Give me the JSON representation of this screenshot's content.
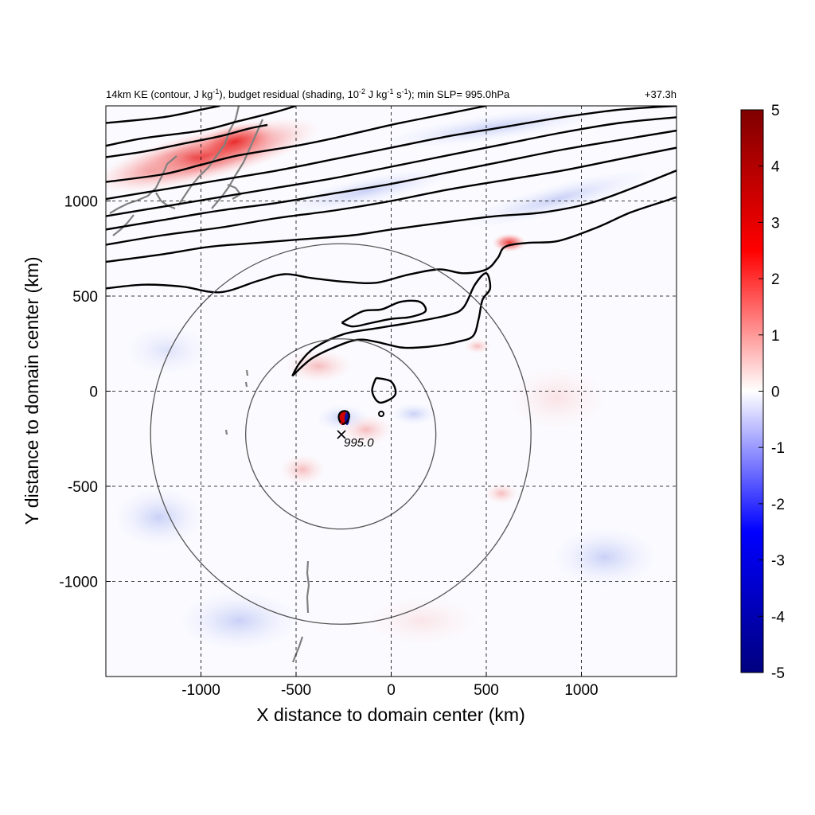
{
  "chart_data": {
    "type": "heatmap",
    "title_main": "14km KE (contour, J kg",
    "title_sup1": "-1",
    "title_mid": "), budget residual (shading, 10",
    "title_sup2": "-2",
    "title_mid2": " J kg",
    "title_sup3": "-1",
    "title_mid3": " s",
    "title_sup4": "-1",
    "title_end": "); min SLP= 995.0hPa",
    "time_label": "+37.3h",
    "xlabel": "X distance to domain center (km)",
    "ylabel": "Y distance to domain center (km)",
    "xlim": [
      -1500,
      1500
    ],
    "ylim": [
      -1500,
      1500
    ],
    "xticks": [
      -1000,
      -500,
      0,
      500,
      1000
    ],
    "yticks": [
      -1000,
      -500,
      0,
      500,
      1000
    ],
    "xtick_labels": [
      "-1000",
      "-500",
      "0",
      "500",
      "1000"
    ],
    "ytick_labels": [
      "-1000",
      "-500",
      "0",
      "500",
      "1000"
    ],
    "grid": true,
    "colorbar": {
      "min": -5,
      "max": 5,
      "ticks": [
        5,
        4,
        3,
        2,
        1,
        0,
        -1,
        -2,
        -3,
        -4,
        -5
      ],
      "tick_labels": [
        "5",
        "4",
        "3",
        "2",
        "1",
        "0",
        "-1",
        "-2",
        "-3",
        "-4",
        "-5"
      ],
      "colors": [
        "#00007f",
        "#0000ff",
        "#ffffff",
        "#ff0000",
        "#7f0000"
      ],
      "placement": "right"
    },
    "storm_center": {
      "x": -265,
      "y": -225,
      "label": "995.0"
    },
    "range_circles_km": [
      500,
      1000
    ],
    "contours": [
      [
        [
          -1500,
          1410
        ],
        [
          -1200,
          1440
        ],
        [
          -1000,
          1480
        ],
        [
          -900,
          1500
        ]
      ],
      [
        [
          -1500,
          1290
        ],
        [
          -1300,
          1330
        ],
        [
          -1000,
          1370
        ],
        [
          -800,
          1420
        ],
        [
          -600,
          1470
        ],
        [
          -500,
          1500
        ]
      ],
      [
        [
          -1500,
          1230
        ],
        [
          -1300,
          1260
        ],
        [
          -1100,
          1300
        ],
        [
          -900,
          1340
        ],
        [
          -750,
          1380
        ],
        [
          -650,
          1400
        ]
      ],
      [
        [
          -1500,
          1100
        ],
        [
          -1200,
          1140
        ],
        [
          -1000,
          1190
        ],
        [
          -800,
          1240
        ],
        [
          -500,
          1290
        ],
        [
          -300,
          1330
        ],
        [
          0,
          1400
        ],
        [
          300,
          1460
        ],
        [
          500,
          1500
        ]
      ],
      [
        [
          -1500,
          1010
        ],
        [
          -1200,
          1060
        ],
        [
          -900,
          1110
        ],
        [
          -600,
          1160
        ],
        [
          -300,
          1220
        ],
        [
          0,
          1280
        ],
        [
          300,
          1340
        ],
        [
          600,
          1390
        ],
        [
          900,
          1440
        ],
        [
          1200,
          1480
        ],
        [
          1500,
          1500
        ]
      ],
      [
        [
          -1500,
          920
        ],
        [
          -1200,
          970
        ],
        [
          -900,
          1020
        ],
        [
          -600,
          1070
        ],
        [
          -300,
          1120
        ],
        [
          0,
          1180
        ],
        [
          300,
          1240
        ],
        [
          600,
          1300
        ],
        [
          900,
          1360
        ],
        [
          1200,
          1410
        ],
        [
          1500,
          1440
        ]
      ],
      [
        [
          -1500,
          850
        ],
        [
          -1200,
          900
        ],
        [
          -900,
          950
        ],
        [
          -600,
          990
        ],
        [
          -300,
          1040
        ],
        [
          0,
          1090
        ],
        [
          300,
          1150
        ],
        [
          600,
          1210
        ],
        [
          900,
          1270
        ],
        [
          1200,
          1320
        ],
        [
          1500,
          1370
        ]
      ],
      [
        [
          -1500,
          770
        ],
        [
          -1200,
          820
        ],
        [
          -900,
          860
        ],
        [
          -600,
          910
        ],
        [
          -300,
          950
        ],
        [
          0,
          1000
        ],
        [
          300,
          1060
        ],
        [
          600,
          1110
        ],
        [
          900,
          1160
        ],
        [
          1200,
          1220
        ],
        [
          1500,
          1280
        ]
      ],
      [
        [
          -1500,
          680
        ],
        [
          -1200,
          720
        ],
        [
          -950,
          760
        ],
        [
          -700,
          780
        ],
        [
          -450,
          800
        ],
        [
          -200,
          820
        ],
        [
          0,
          850
        ],
        [
          300,
          890
        ],
        [
          550,
          920
        ],
        [
          800,
          940
        ],
        [
          1050,
          990
        ],
        [
          1300,
          1080
        ],
        [
          1500,
          1160
        ]
      ],
      [
        [
          -1500,
          540
        ],
        [
          -1300,
          560
        ],
        [
          -1100,
          550
        ],
        [
          -900,
          520
        ],
        [
          -700,
          580
        ],
        [
          -560,
          615
        ],
        [
          -420,
          595
        ],
        [
          -240,
          575
        ],
        [
          -80,
          570
        ],
        [
          80,
          610
        ],
        [
          250,
          640
        ],
        [
          380,
          620
        ],
        [
          500,
          640
        ],
        [
          560,
          700
        ],
        [
          600,
          760
        ],
        [
          720,
          780
        ],
        [
          880,
          790
        ],
        [
          1080,
          860
        ],
        [
          1260,
          940
        ],
        [
          1440,
          1000
        ],
        [
          1500,
          1020
        ]
      ],
      [
        [
          -260,
          360
        ],
        [
          -150,
          420
        ],
        [
          -50,
          430
        ],
        [
          50,
          470
        ],
        [
          150,
          470
        ],
        [
          180,
          420
        ],
        [
          100,
          390
        ],
        [
          0,
          380
        ],
        [
          -100,
          360
        ],
        [
          -200,
          340
        ],
        [
          -260,
          360
        ]
      ],
      [
        [
          -520,
          80
        ],
        [
          -420,
          170
        ],
        [
          -300,
          230
        ],
        [
          -180,
          270
        ],
        [
          -80,
          260
        ],
        [
          50,
          230
        ],
        [
          150,
          230
        ],
        [
          250,
          240
        ],
        [
          350,
          260
        ],
        [
          430,
          290
        ],
        [
          460,
          380
        ],
        [
          480,
          480
        ],
        [
          520,
          540
        ],
        [
          500,
          620
        ],
        [
          440,
          560
        ],
        [
          380,
          440
        ],
        [
          300,
          400
        ],
        [
          100,
          360
        ],
        [
          -80,
          330
        ],
        [
          -250,
          300
        ],
        [
          -400,
          230
        ],
        [
          -480,
          150
        ],
        [
          -520,
          80
        ]
      ],
      [
        [
          -80,
          70
        ],
        [
          0,
          50
        ],
        [
          20,
          -20
        ],
        [
          -60,
          -60
        ],
        [
          -100,
          0
        ],
        [
          -80,
          70
        ]
      ]
    ]
  }
}
